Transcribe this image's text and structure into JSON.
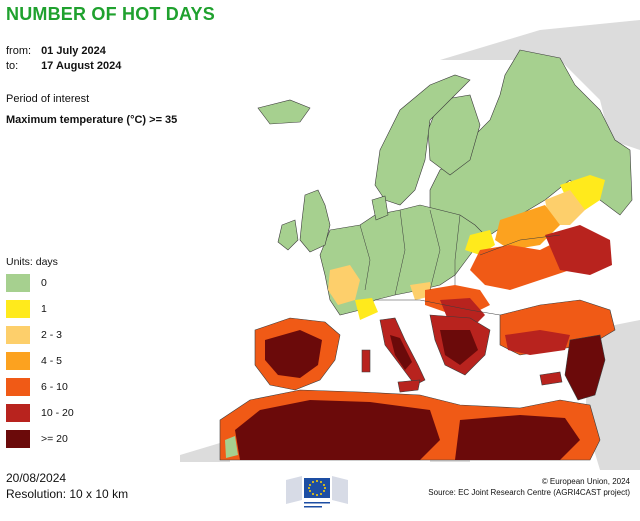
{
  "header": {
    "title": "NUMBER OF HOT DAYS",
    "from_label": "from:",
    "from_value": "01 July 2024",
    "to_label": "to:",
    "to_value": "17 August 2024",
    "period_label": "Period of interest",
    "parameter": "Maximum temperature (°C) >= 35"
  },
  "legend": {
    "units": "Units: days",
    "items": [
      {
        "label": "0",
        "color": "#a6d08f"
      },
      {
        "label": "1",
        "color": "#ffea1c"
      },
      {
        "label": "2 - 3",
        "color": "#fdcf6b"
      },
      {
        "label": "4 - 5",
        "color": "#fca21f"
      },
      {
        "label": "6 - 10",
        "color": "#f05a16"
      },
      {
        "label": "10 - 20",
        "color": "#b8231e"
      },
      {
        "label": ">= 20",
        "color": "#6b0a0a"
      }
    ]
  },
  "footer": {
    "date": "20/08/2024",
    "resolution": "Resolution: 10 x 10 km",
    "copyright": "© European Union, 2024",
    "source": "Source: EC Joint Research Centre (AGRI4CAST project)",
    "logo_text": "European Commission"
  },
  "colors": {
    "title": "#1fa12e",
    "land_outside": "#dcdcdc",
    "water": "#ffffff",
    "border": "#3c3c3c"
  }
}
